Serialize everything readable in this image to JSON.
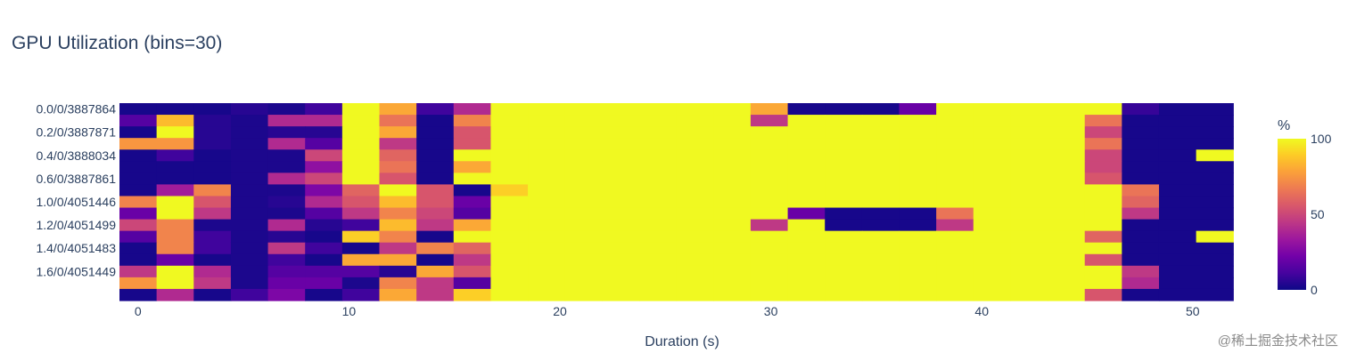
{
  "watermark": "@稀土掘金技术社区",
  "colors": {
    "text": "#2a3f5f",
    "scale": [
      "#0d0887",
      "#46039f",
      "#7201a8",
      "#9c179e",
      "#bd3786",
      "#d8576b",
      "#ed7953",
      "#fb9f3a",
      "#fdca26",
      "#f0f921"
    ],
    "gap": "#f0f2ff"
  },
  "chart_data": {
    "type": "heatmap",
    "title": "GPU Utilization (bins=30)",
    "xlabel": "Duration (s)",
    "ylabel": "",
    "xlim": [
      -0.88,
      52.5
    ],
    "x_ticks": [
      0,
      10,
      20,
      30,
      40,
      50
    ],
    "x_centers": [
      0,
      1.76,
      3.52,
      5.28,
      7.04,
      8.8,
      10.56,
      12.32,
      14.08,
      15.84,
      17.6,
      19.36,
      21.12,
      22.88,
      24.64,
      26.4,
      28.16,
      29.92,
      31.68,
      33.44,
      35.2,
      36.96,
      38.72,
      40.48,
      42.24,
      44.0,
      45.76,
      47.52,
      49.28,
      51.04
    ],
    "y_tick_labels": [
      "0.0/0/3887864",
      "0.2/0/3887871",
      "0.4/0/3888034",
      "0.6/0/3887861",
      "1.0/0/4051446",
      "1.2/0/4051499",
      "1.4/0/4051483",
      "1.6/0/4051449"
    ],
    "colorbar": {
      "title": "%",
      "min": 0,
      "max": 100,
      "ticks": [
        0,
        50,
        100
      ]
    },
    "z": [
      [
        2,
        2,
        2,
        5,
        3,
        10,
        100,
        80,
        10,
        40,
        100,
        100,
        100,
        100,
        100,
        100,
        100,
        80,
        2,
        2,
        2,
        20,
        100,
        100,
        100,
        100,
        100,
        8,
        2,
        2
      ],
      [
        15,
        85,
        5,
        3,
        40,
        40,
        100,
        65,
        2,
        70,
        100,
        100,
        100,
        100,
        100,
        100,
        100,
        45,
        100,
        100,
        100,
        100,
        100,
        100,
        100,
        100,
        65,
        2,
        2,
        2
      ],
      [
        2,
        100,
        5,
        3,
        5,
        5,
        100,
        80,
        2,
        55,
        100,
        100,
        100,
        100,
        100,
        100,
        100,
        100,
        100,
        100,
        100,
        100,
        100,
        100,
        100,
        100,
        50,
        2,
        2,
        2
      ],
      [
        75,
        75,
        5,
        3,
        40,
        15,
        100,
        45,
        2,
        55,
        100,
        100,
        100,
        100,
        100,
        100,
        100,
        100,
        100,
        100,
        100,
        100,
        100,
        100,
        100,
        100,
        65,
        2,
        2,
        2
      ],
      [
        2,
        10,
        2,
        3,
        3,
        50,
        100,
        60,
        2,
        100,
        100,
        100,
        100,
        100,
        100,
        100,
        100,
        100,
        100,
        100,
        100,
        100,
        100,
        100,
        100,
        100,
        50,
        2,
        2,
        100
      ],
      [
        2,
        2,
        2,
        3,
        3,
        30,
        100,
        65,
        2,
        80,
        100,
        100,
        100,
        100,
        100,
        100,
        100,
        100,
        100,
        100,
        100,
        100,
        100,
        100,
        100,
        100,
        50,
        2,
        2,
        2
      ],
      [
        2,
        2,
        2,
        3,
        40,
        50,
        100,
        55,
        2,
        100,
        100,
        100,
        100,
        100,
        100,
        100,
        100,
        100,
        100,
        100,
        100,
        100,
        100,
        100,
        100,
        100,
        55,
        2,
        2,
        2
      ],
      [
        2,
        35,
        70,
        3,
        3,
        25,
        60,
        100,
        55,
        2,
        90,
        100,
        100,
        100,
        100,
        100,
        100,
        100,
        100,
        100,
        100,
        100,
        100,
        100,
        100,
        100,
        100,
        65,
        2,
        2
      ],
      [
        70,
        100,
        55,
        3,
        5,
        40,
        55,
        85,
        55,
        20,
        100,
        100,
        100,
        100,
        100,
        100,
        100,
        100,
        100,
        100,
        100,
        100,
        100,
        100,
        100,
        100,
        100,
        60,
        2,
        2
      ],
      [
        20,
        100,
        45,
        3,
        3,
        15,
        45,
        70,
        50,
        15,
        100,
        100,
        100,
        100,
        100,
        100,
        100,
        100,
        20,
        2,
        2,
        2,
        65,
        100,
        100,
        100,
        100,
        45,
        2,
        2
      ],
      [
        50,
        70,
        3,
        3,
        40,
        5,
        10,
        85,
        45,
        80,
        100,
        100,
        100,
        100,
        100,
        100,
        100,
        45,
        100,
        2,
        2,
        2,
        45,
        100,
        100,
        100,
        100,
        2,
        2,
        2
      ],
      [
        15,
        70,
        10,
        3,
        5,
        2,
        90,
        70,
        2,
        100,
        100,
        100,
        100,
        100,
        100,
        100,
        100,
        100,
        100,
        100,
        100,
        100,
        100,
        100,
        100,
        100,
        60,
        2,
        2,
        100
      ],
      [
        2,
        70,
        10,
        3,
        45,
        10,
        2,
        45,
        70,
        60,
        100,
        100,
        100,
        100,
        100,
        100,
        100,
        100,
        100,
        100,
        100,
        100,
        100,
        100,
        100,
        100,
        100,
        2,
        2,
        2
      ],
      [
        2,
        20,
        2,
        3,
        10,
        2,
        80,
        80,
        2,
        45,
        100,
        100,
        100,
        100,
        100,
        100,
        100,
        100,
        100,
        100,
        100,
        100,
        100,
        100,
        100,
        100,
        55,
        2,
        2,
        2
      ],
      [
        45,
        100,
        40,
        3,
        15,
        15,
        15,
        5,
        80,
        55,
        100,
        100,
        100,
        100,
        100,
        100,
        100,
        100,
        100,
        100,
        100,
        100,
        100,
        100,
        100,
        100,
        100,
        45,
        2,
        2
      ],
      [
        75,
        100,
        45,
        3,
        20,
        20,
        3,
        70,
        45,
        15,
        100,
        100,
        100,
        100,
        100,
        100,
        100,
        100,
        100,
        100,
        100,
        100,
        100,
        100,
        100,
        100,
        100,
        40,
        2,
        2
      ],
      [
        2,
        40,
        2,
        10,
        25,
        2,
        10,
        80,
        45,
        90,
        100,
        100,
        100,
        100,
        100,
        100,
        100,
        100,
        100,
        100,
        100,
        100,
        100,
        100,
        100,
        100,
        55,
        2,
        2,
        2
      ]
    ]
  }
}
